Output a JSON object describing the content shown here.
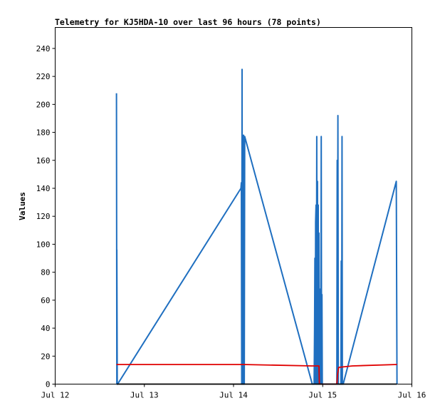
{
  "chart_data": {
    "type": "line",
    "title": "Telemetry for KJ5HDA-10 over last 96 hours (78 points)",
    "xlabel": "",
    "ylabel": "Values",
    "x_ticks": [
      "Jul 12",
      "Jul 13",
      "Jul 14",
      "Jul 15",
      "Jul 16"
    ],
    "x_unit": "hours since Jul 12 00:00",
    "xlim": [
      0,
      96
    ],
    "ylim": [
      0,
      255
    ],
    "y_ticks": [
      0,
      20,
      40,
      60,
      80,
      100,
      120,
      140,
      160,
      180,
      200,
      220,
      240
    ],
    "grid": false,
    "series": [
      {
        "color": "#1f6fc0",
        "x": [
          16.5,
          16.6,
          16.6,
          16.7,
          16.7,
          16.8,
          50.0,
          50.1,
          50.2,
          50.3,
          50.4,
          50.5,
          50.6,
          50.7,
          50.8,
          50.9,
          51.0,
          69.2,
          69.7,
          69.8,
          69.9,
          70.0,
          70.1,
          70.2,
          70.3,
          70.4,
          70.5,
          70.6,
          70.7,
          70.8,
          70.9,
          71.0,
          71.1,
          71.2,
          71.3,
          71.4,
          71.5,
          71.6,
          71.7,
          71.8,
          71.9,
          72.0,
          72.1,
          72.2,
          72.3,
          72.4,
          72.5,
          72.6,
          72.7,
          72.8,
          72.9,
          73.0,
          73.1,
          73.2,
          73.3,
          73.4,
          73.5,
          73.6,
          74.0,
          74.1,
          74.2,
          74.3,
          75.8,
          75.9,
          76.0,
          76.1,
          76.2,
          76.3,
          76.9,
          77.0,
          77.1,
          77.2,
          77.3,
          77.4,
          77.5,
          91.8,
          91.9,
          92.0
        ],
        "values": [
          208,
          0,
          96,
          0,
          0,
          0,
          140,
          144,
          0,
          225,
          0,
          176,
          0,
          178,
          176,
          0,
          177,
          0,
          0,
          38,
          90,
          0,
          116,
          128,
          0,
          177,
          0,
          145,
          0,
          128,
          0,
          108,
          0,
          68,
          0,
          22,
          0,
          177,
          0,
          64,
          0,
          0,
          0,
          0,
          0,
          0,
          0,
          0,
          0,
          0,
          0,
          0,
          0,
          0,
          0,
          0,
          0,
          0,
          0,
          0,
          0,
          0,
          0,
          160,
          0,
          192,
          0,
          0,
          0,
          88,
          0,
          177,
          0,
          0,
          0,
          145,
          72,
          0
        ]
      },
      {
        "color": "#e00000",
        "x": [
          16.5,
          50.5,
          69.0,
          71.0,
          71.1,
          72.0,
          75.8,
          76.0,
          76.3,
          80.0,
          92.0
        ],
        "values": [
          14,
          14,
          13,
          13,
          0,
          0,
          0,
          7,
          12,
          13,
          14
        ]
      },
      {
        "color": "#000000",
        "x": [
          16.5,
          92.0
        ],
        "values": [
          0,
          0
        ]
      }
    ]
  }
}
